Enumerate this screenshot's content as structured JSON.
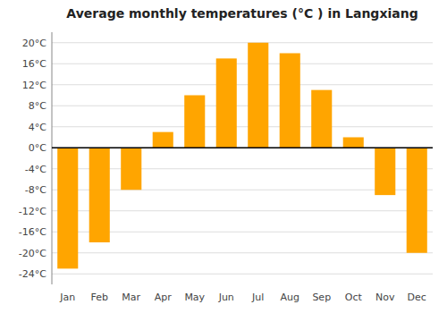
{
  "chart_data": {
    "type": "bar",
    "title": "Average monthly temperatures (°C ) in Langxiang",
    "categories": [
      "Jan",
      "Feb",
      "Mar",
      "Apr",
      "May",
      "Jun",
      "Jul",
      "Aug",
      "Sep",
      "Oct",
      "Nov",
      "Dec"
    ],
    "values": [
      -23,
      -18,
      -8,
      3,
      10,
      17,
      20,
      18,
      11,
      2,
      -9,
      -20
    ],
    "color": "#FFA500",
    "ylim": [
      -26,
      22
    ],
    "yticks": [
      {
        "value": -24,
        "label": "-24°C"
      },
      {
        "value": -20,
        "label": "-20°C"
      },
      {
        "value": -16,
        "label": "-16°C"
      },
      {
        "value": -12,
        "label": "-12°C"
      },
      {
        "value": -8,
        "label": "-8°C"
      },
      {
        "value": -4,
        "label": "-4°C"
      },
      {
        "value": 0,
        "label": "0°C"
      },
      {
        "value": 4,
        "label": "4°C"
      },
      {
        "value": 8,
        "label": "8°C"
      },
      {
        "value": 12,
        "label": "12°C"
      },
      {
        "value": 16,
        "label": "16°C"
      },
      {
        "value": 20,
        "label": "20°C"
      }
    ],
    "grid": true
  }
}
